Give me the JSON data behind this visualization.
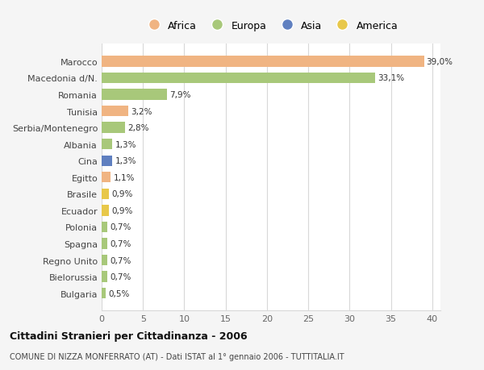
{
  "categories": [
    "Marocco",
    "Macedonia d/N.",
    "Romania",
    "Tunisia",
    "Serbia/Montenegro",
    "Albania",
    "Cina",
    "Egitto",
    "Brasile",
    "Ecuador",
    "Polonia",
    "Spagna",
    "Regno Unito",
    "Bielorussia",
    "Bulgaria"
  ],
  "values": [
    39.0,
    33.1,
    7.9,
    3.2,
    2.8,
    1.3,
    1.3,
    1.1,
    0.9,
    0.9,
    0.7,
    0.7,
    0.7,
    0.7,
    0.5
  ],
  "labels": [
    "39,0%",
    "33,1%",
    "7,9%",
    "3,2%",
    "2,8%",
    "1,3%",
    "1,3%",
    "1,1%",
    "0,9%",
    "0,9%",
    "0,7%",
    "0,7%",
    "0,7%",
    "0,7%",
    "0,5%"
  ],
  "colors": [
    "#f0b482",
    "#a8c87a",
    "#a8c87a",
    "#f0b482",
    "#a8c87a",
    "#a8c87a",
    "#6080c0",
    "#f0b482",
    "#e8c84a",
    "#e8c84a",
    "#a8c87a",
    "#a8c87a",
    "#a8c87a",
    "#a8c87a",
    "#a8c87a"
  ],
  "legend_labels": [
    "Africa",
    "Europa",
    "Asia",
    "America"
  ],
  "legend_colors": [
    "#f0b482",
    "#a8c87a",
    "#6080c0",
    "#e8c84a"
  ],
  "title": "Cittadini Stranieri per Cittadinanza - 2006",
  "subtitle": "COMUNE DI NIZZA MONFERRATO (AT) - Dati ISTAT al 1° gennaio 2006 - TUTTITALIA.IT",
  "xlim": [
    0,
    41
  ],
  "xticks": [
    0,
    5,
    10,
    15,
    20,
    25,
    30,
    35,
    40
  ],
  "bg_color": "#f5f5f5",
  "bar_bg_color": "#ffffff",
  "grid_color": "#d8d8d8"
}
